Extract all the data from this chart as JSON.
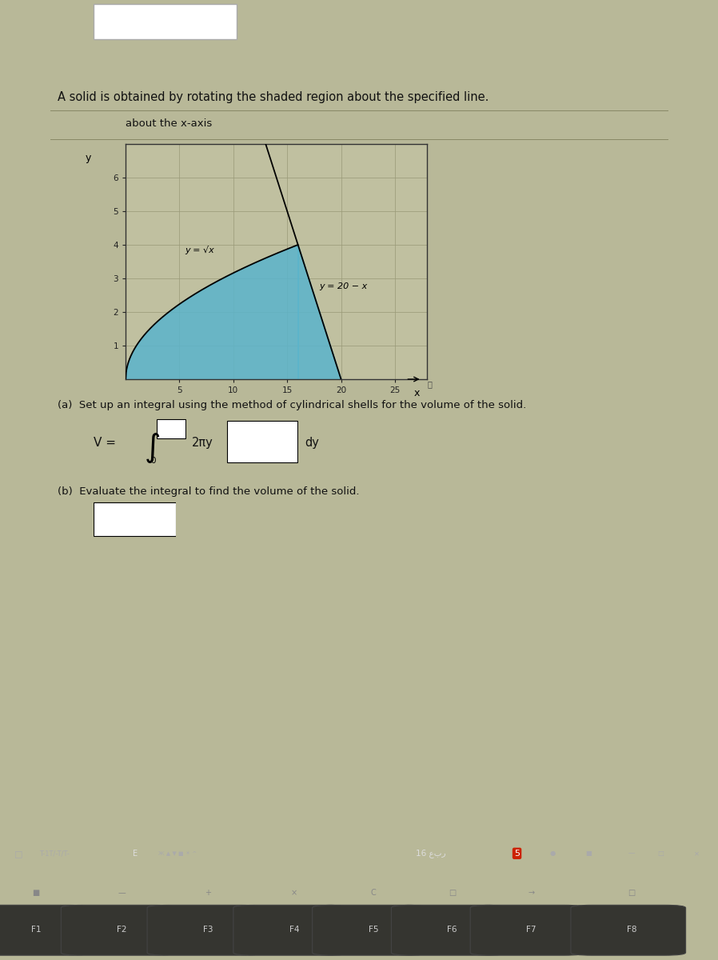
{
  "title_main": "A solid is obtained by rotating the shaded region about the specified line.",
  "title_sub": "about the x-axis",
  "content_bg": "#b8b898",
  "laptop_body_bg": "#3a3830",
  "taskbar_bg": "#2a2820",
  "keyboard_bg": "#252318",
  "shaded_color": "#5ab4cc",
  "plot_bg_color": "#c0c0a0",
  "curve1_label": "y = √x",
  "curve2_label": "y = 20 − x",
  "x_label": "x",
  "y_label": "y",
  "xlim": [
    0,
    28
  ],
  "ylim": [
    0,
    7
  ],
  "xticks": [
    5,
    10,
    15,
    20,
    25
  ],
  "yticks": [
    1,
    2,
    3,
    4,
    5,
    6
  ],
  "part_a_text": "(a)  Set up an integral using the method of cylindrical shells for the volume of the solid.",
  "part_b_text": "(b)  Evaluate the integral to find the volume of the solid.",
  "integral_lower": "0",
  "integral_2piy": "2πy",
  "integral_dy": "dy",
  "text_color": "#111111",
  "grid_color": "#999977",
  "font_size_title": 10.5,
  "font_size_sub": 9.5,
  "font_size_text": 9.5,
  "key_labels": [
    "F1",
    "F2",
    "F3",
    "F4",
    "F5",
    "F6",
    "F7",
    "F8"
  ],
  "key_icons": [
    "■",
    "—",
    "+",
    "×",
    "C",
    "□",
    "→",
    "□"
  ],
  "key_x": [
    0.05,
    0.17,
    0.29,
    0.41,
    0.52,
    0.63,
    0.74,
    0.88
  ],
  "taskbar_text": "T-1T/-T/T-",
  "taskbar_arabic": "16 عبر",
  "separator_color": "#888866"
}
